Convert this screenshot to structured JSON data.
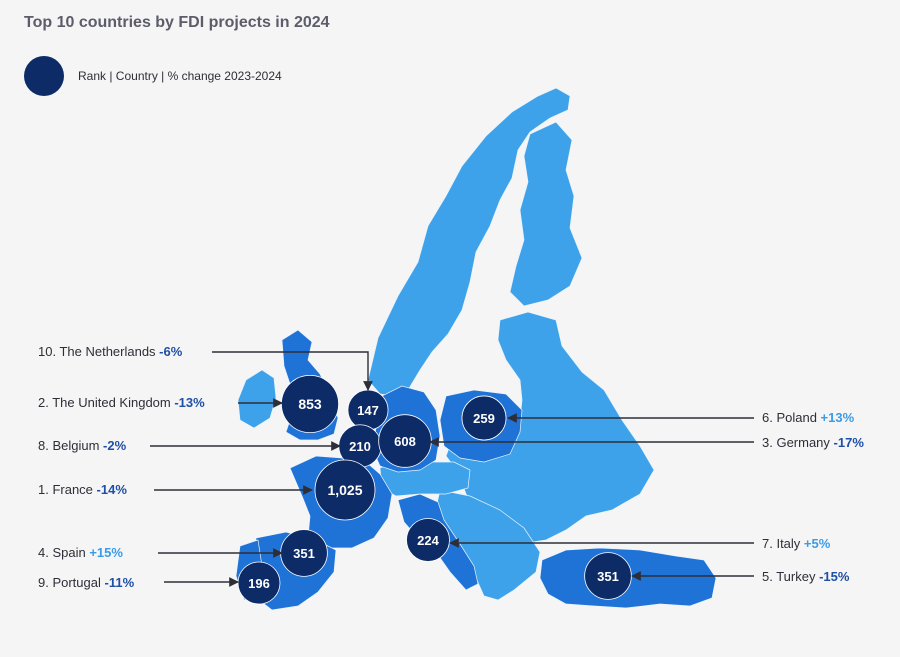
{
  "title": "Top 10 countries by FDI projects in 2024",
  "legend": {
    "label": "Rank | Country | % change 2023-2024",
    "swatch_color": "#0d2b66"
  },
  "colors": {
    "bubble": "#0d2b66",
    "highlight_country": "#1f72d6",
    "other_country": "#3ea2ea",
    "positive_change": "#3b9be6",
    "negative_change": "#1f4fa6",
    "background": "#f5f5f5"
  },
  "countries": [
    {
      "rank": "10.",
      "name": "The Netherlands",
      "change": "-6%",
      "projects": "147",
      "value": 147
    },
    {
      "rank": "2.",
      "name": "The United Kingdom",
      "change": "-13%",
      "projects": "853",
      "value": 853
    },
    {
      "rank": "8.",
      "name": "Belgium",
      "change": "-2%",
      "projects": "210",
      "value": 210
    },
    {
      "rank": "1.",
      "name": "France",
      "change": "-14%",
      "projects": "1,025",
      "value": 1025
    },
    {
      "rank": "4.",
      "name": "Spain",
      "change": "+15%",
      "projects": "351",
      "value": 351
    },
    {
      "rank": "9.",
      "name": "Portugal",
      "change": "-11%",
      "projects": "196",
      "value": 196
    },
    {
      "rank": "6.",
      "name": "Poland",
      "change": "+13%",
      "projects": "259",
      "value": 259
    },
    {
      "rank": "3.",
      "name": "Germany",
      "change": "-17%",
      "projects": "608",
      "value": 608
    },
    {
      "rank": "7.",
      "name": "Italy",
      "change": "+5%",
      "projects": "224",
      "value": 224
    },
    {
      "rank": "5.",
      "name": "Turkey",
      "change": "-15%",
      "projects": "351",
      "value": 351
    }
  ]
}
